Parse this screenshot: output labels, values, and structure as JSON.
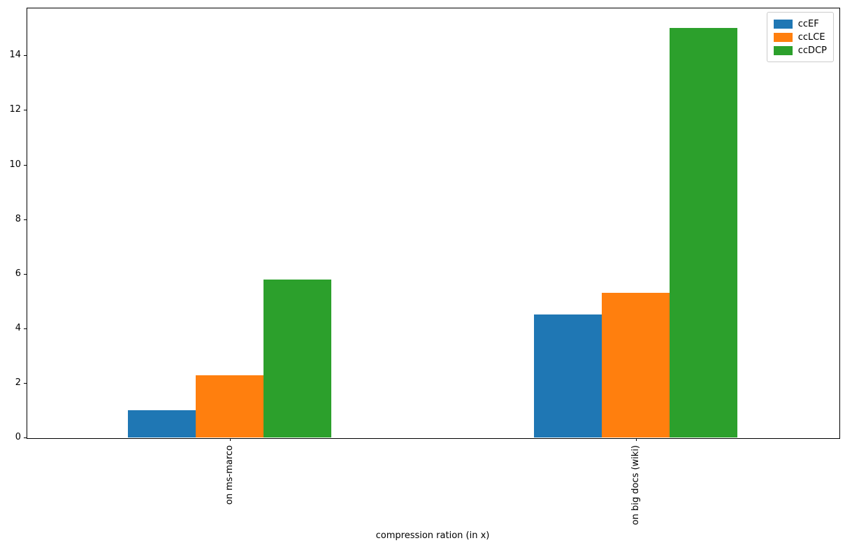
{
  "chart_data": {
    "type": "bar",
    "title": "",
    "xlabel": "compression ration (in x)",
    "ylabel": "",
    "categories": [
      "on ms-marco",
      "on big docs (wiki)"
    ],
    "series": [
      {
        "name": "ccEF",
        "color": "#1f77b4",
        "values": [
          1.0,
          4.5
        ]
      },
      {
        "name": "ccLCE",
        "color": "#ff7f0e",
        "values": [
          2.28,
          5.3
        ]
      },
      {
        "name": "ccDCP",
        "color": "#2ca02c",
        "values": [
          5.8,
          15.0
        ]
      }
    ],
    "yticks": [
      0,
      2,
      4,
      6,
      8,
      10,
      12,
      14
    ],
    "ylim": [
      0,
      15.75
    ],
    "legend_position": "upper right",
    "grid": false
  }
}
